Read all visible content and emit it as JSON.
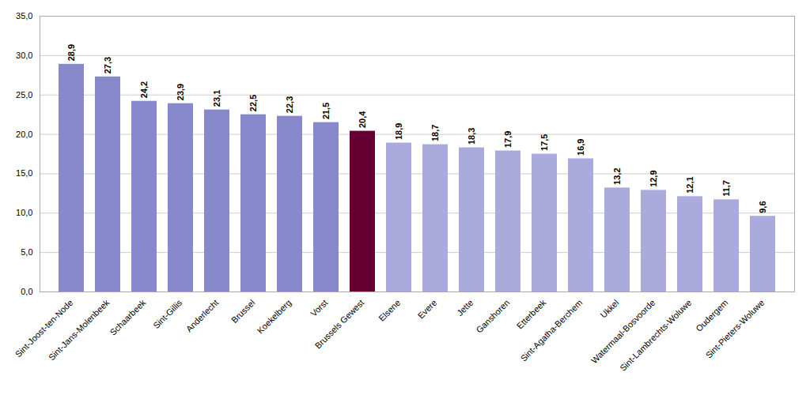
{
  "chart_data": {
    "type": "bar",
    "categories": [
      "Sint-Joost-ten-Node",
      "Sint-Jans-Molenbeek",
      "Schaarbeek",
      "Sint-Gillis",
      "Anderlecht",
      "Brussel",
      "Koekelberg",
      "Vorst",
      "Brussels Gewest",
      "Elsene",
      "Evere",
      "Jette",
      "Ganshoren",
      "Etterbeek",
      "Sint-Agatha-Berchem",
      "Ukkel",
      "Watermaal-Bosvoorde",
      "Sint-Lambrechts-Woluwe",
      "Oudergem",
      "Sint-Pieters-Woluwe"
    ],
    "values": [
      28.9,
      27.3,
      24.2,
      23.9,
      23.1,
      22.5,
      22.3,
      21.5,
      20.4,
      18.9,
      18.7,
      18.3,
      17.9,
      17.5,
      16.9,
      13.2,
      12.9,
      12.1,
      11.7,
      9.6
    ],
    "value_labels": [
      "28,9",
      "27,3",
      "24,2",
      "23,9",
      "23,1",
      "22,5",
      "22,3",
      "21,5",
      "20,4",
      "18,9",
      "18,7",
      "18,3",
      "17,9",
      "17,5",
      "16,9",
      "13,2",
      "12,9",
      "12,1",
      "11,7",
      "9,6"
    ],
    "colors": [
      "#8888cc",
      "#8888cc",
      "#8888cc",
      "#8888cc",
      "#8888cc",
      "#8888cc",
      "#8888cc",
      "#8888cc",
      "#660033",
      "#aaaadd",
      "#aaaadd",
      "#aaaadd",
      "#aaaadd",
      "#aaaadd",
      "#aaaadd",
      "#aaaadd",
      "#aaaadd",
      "#aaaadd",
      "#aaaadd",
      "#aaaadd"
    ],
    "ylim": [
      0,
      35
    ],
    "yticks": [
      {
        "value": 0,
        "label": "0,0"
      },
      {
        "value": 5,
        "label": "5,0"
      },
      {
        "value": 10,
        "label": "10,0"
      },
      {
        "value": 15,
        "label": "15,0"
      },
      {
        "value": 20,
        "label": "20,0"
      },
      {
        "value": 25,
        "label": "25,0"
      },
      {
        "value": 30,
        "label": "30,0"
      },
      {
        "value": 35,
        "label": "35,0"
      }
    ],
    "grid": true,
    "data_labels": true
  }
}
